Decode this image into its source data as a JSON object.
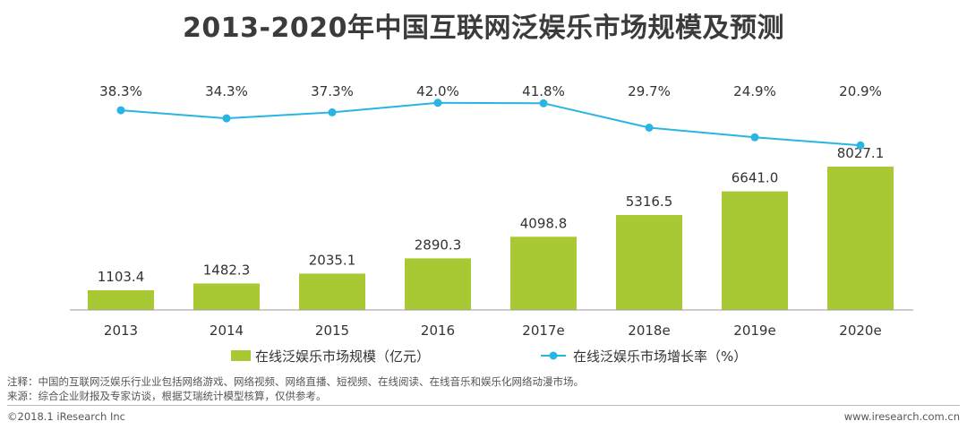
{
  "chart_data": {
    "title": "2013-2020年中国互联网泛娱乐市场规模及预测",
    "type": "bar+line",
    "categories": [
      "2013",
      "2014",
      "2015",
      "2016",
      "2017e",
      "2018e",
      "2019e",
      "2020e"
    ],
    "series": [
      {
        "name": "在线泛娱乐市场规模（亿元）",
        "type": "bar",
        "color": "#a8c934",
        "values": [
          1103.4,
          1482.3,
          2035.1,
          2890.3,
          4098.8,
          5316.5,
          6641.0,
          8027.1
        ],
        "labels": [
          "1103.4",
          "1482.3",
          "2035.1",
          "2890.3",
          "4098.8",
          "5316.5",
          "6641.0",
          "8027.1"
        ]
      },
      {
        "name": "在线泛娱乐市场增长率（%）",
        "type": "line",
        "color": "#29b5e3",
        "values": [
          38.3,
          34.3,
          37.3,
          42.0,
          41.8,
          29.7,
          24.9,
          20.9
        ],
        "labels": [
          "38.3%",
          "34.3%",
          "37.3%",
          "42.0%",
          "41.8%",
          "29.7%",
          "24.9%",
          "20.9%"
        ]
      }
    ],
    "legend_position": "bottom"
  },
  "notes": {
    "note": "注释：中国的互联网泛娱乐行业业包括网络游戏、网络视频、网络直播、短视频、在线阅读、在线音乐和娱乐化网络动漫市场。",
    "source": "来源：综合企业财报及专家访谈，根据艾瑞统计模型核算，仅供参考。"
  },
  "footer": {
    "copyright": "©2018.1 iResearch Inc",
    "website": "www.iresearch.com.cn"
  }
}
